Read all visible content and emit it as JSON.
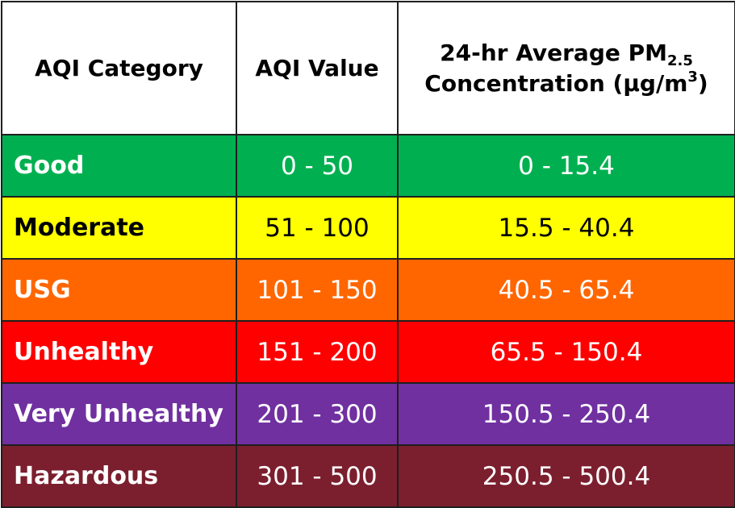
{
  "header": {
    "category": "AQI Category",
    "value": "AQI Value",
    "conc_line1": "24-hr Average PM",
    "conc_sub": "2.5",
    "conc_line2_pre": "Concentration (μg/m",
    "conc_sup": "3",
    "conc_line2_post": ")"
  },
  "rows": [
    {
      "category": "Good",
      "aqi": "0 - 50",
      "pm": "0 - 15.4",
      "bg": "#00b050",
      "fg": "#ffffff"
    },
    {
      "category": "Moderate",
      "aqi": "51 - 100",
      "pm": "15.5 - 40.4",
      "bg": "#ffff00",
      "fg": "#000000"
    },
    {
      "category": "USG",
      "aqi": "101 - 150",
      "pm": "40.5 - 65.4",
      "bg": "#ff6600",
      "fg": "#ffffff"
    },
    {
      "category": "Unhealthy",
      "aqi": "151 - 200",
      "pm": "65.5 - 150.4",
      "bg": "#ff0000",
      "fg": "#ffffff"
    },
    {
      "category": "Very Unhealthy",
      "aqi": "201 - 300",
      "pm": "150.5 - 250.4",
      "bg": "#7030a0",
      "fg": "#ffffff"
    },
    {
      "category": "Hazardous",
      "aqi": "301 - 500",
      "pm": "250.5 - 500.4",
      "bg": "#7b1f2e",
      "fg": "#ffffff"
    }
  ]
}
